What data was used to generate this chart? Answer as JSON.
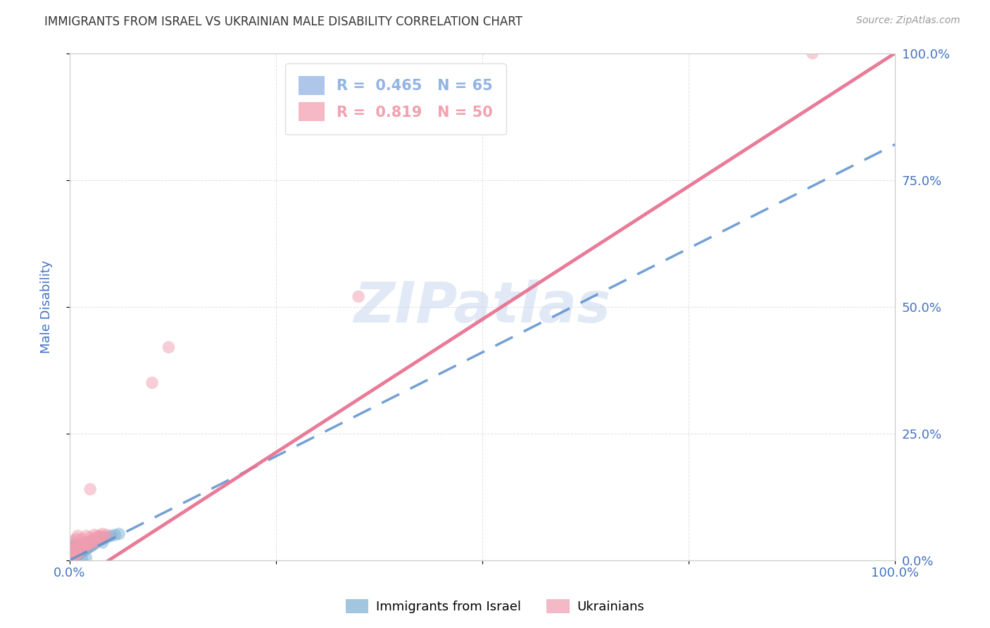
{
  "title": "IMMIGRANTS FROM ISRAEL VS UKRAINIAN MALE DISABILITY CORRELATION CHART",
  "source": "Source: ZipAtlas.com",
  "ylabel": "Male Disability",
  "xlim": [
    0,
    1.0
  ],
  "ylim": [
    0,
    1.0
  ],
  "xtick_labels": [
    "0.0%",
    "",
    "",
    "",
    "100.0%"
  ],
  "ytick_labels": [
    "",
    "",
    "",
    "",
    ""
  ],
  "right_ytick_labels": [
    "0.0%",
    "25.0%",
    "50.0%",
    "75.0%",
    "100.0%"
  ],
  "xtick_positions": [
    0.0,
    0.25,
    0.5,
    0.75,
    1.0
  ],
  "ytick_positions": [
    0.0,
    0.25,
    0.5,
    0.75,
    1.0
  ],
  "watermark": "ZIPatlas",
  "legend_entries": [
    {
      "label": "Immigrants from Israel",
      "color": "#92b4e3",
      "R": "0.465",
      "N": "65"
    },
    {
      "label": "Ukrainians",
      "color": "#f4a0b0",
      "R": "0.819",
      "N": "50"
    }
  ],
  "blue_scatter": [
    [
      0.002,
      0.005
    ],
    [
      0.003,
      0.008
    ],
    [
      0.004,
      0.006
    ],
    [
      0.005,
      0.01
    ],
    [
      0.006,
      0.008
    ],
    [
      0.007,
      0.012
    ],
    [
      0.008,
      0.01
    ],
    [
      0.009,
      0.014
    ],
    [
      0.01,
      0.012
    ],
    [
      0.011,
      0.016
    ],
    [
      0.012,
      0.014
    ],
    [
      0.013,
      0.018
    ],
    [
      0.014,
      0.016
    ],
    [
      0.015,
      0.02
    ],
    [
      0.016,
      0.018
    ],
    [
      0.017,
      0.022
    ],
    [
      0.018,
      0.02
    ],
    [
      0.019,
      0.024
    ],
    [
      0.02,
      0.022
    ],
    [
      0.021,
      0.026
    ],
    [
      0.022,
      0.024
    ],
    [
      0.023,
      0.028
    ],
    [
      0.024,
      0.026
    ],
    [
      0.025,
      0.03
    ],
    [
      0.026,
      0.028
    ],
    [
      0.027,
      0.032
    ],
    [
      0.028,
      0.03
    ],
    [
      0.029,
      0.034
    ],
    [
      0.03,
      0.032
    ],
    [
      0.032,
      0.036
    ],
    [
      0.001,
      0.003
    ],
    [
      0.002,
      0.007
    ],
    [
      0.003,
      0.004
    ],
    [
      0.004,
      0.009
    ],
    [
      0.005,
      0.006
    ],
    [
      0.006,
      0.011
    ],
    [
      0.007,
      0.008
    ],
    [
      0.008,
      0.013
    ],
    [
      0.009,
      0.01
    ],
    [
      0.01,
      0.015
    ],
    [
      0.015,
      0.025
    ],
    [
      0.02,
      0.03
    ],
    [
      0.025,
      0.035
    ],
    [
      0.03,
      0.038
    ],
    [
      0.035,
      0.04
    ],
    [
      0.04,
      0.042
    ],
    [
      0.045,
      0.045
    ],
    [
      0.05,
      0.048
    ],
    [
      0.055,
      0.05
    ],
    [
      0.06,
      0.052
    ],
    [
      0.003,
      0.022
    ],
    [
      0.004,
      0.025
    ],
    [
      0.005,
      0.022
    ],
    [
      0.012,
      0.028
    ],
    [
      0.018,
      0.032
    ],
    [
      0.022,
      0.028
    ],
    [
      0.028,
      0.033
    ],
    [
      0.033,
      0.038
    ],
    [
      0.038,
      0.04
    ],
    [
      0.04,
      0.035
    ],
    [
      0.003,
      0.032
    ],
    [
      0.005,
      0.028
    ],
    [
      0.008,
      0.005
    ],
    [
      0.02,
      0.005
    ],
    [
      0.015,
      0.003
    ]
  ],
  "pink_scatter": [
    [
      0.002,
      0.008
    ],
    [
      0.004,
      0.015
    ],
    [
      0.006,
      0.02
    ],
    [
      0.008,
      0.018
    ],
    [
      0.01,
      0.025
    ],
    [
      0.012,
      0.022
    ],
    [
      0.014,
      0.028
    ],
    [
      0.016,
      0.025
    ],
    [
      0.018,
      0.03
    ],
    [
      0.02,
      0.028
    ],
    [
      0.022,
      0.035
    ],
    [
      0.024,
      0.032
    ],
    [
      0.026,
      0.038
    ],
    [
      0.028,
      0.035
    ],
    [
      0.03,
      0.042
    ],
    [
      0.032,
      0.038
    ],
    [
      0.034,
      0.045
    ],
    [
      0.036,
      0.042
    ],
    [
      0.038,
      0.048
    ],
    [
      0.04,
      0.045
    ],
    [
      0.005,
      0.038
    ],
    [
      0.008,
      0.042
    ],
    [
      0.01,
      0.048
    ],
    [
      0.015,
      0.042
    ],
    [
      0.02,
      0.048
    ],
    [
      0.025,
      0.045
    ],
    [
      0.03,
      0.05
    ],
    [
      0.035,
      0.048
    ],
    [
      0.04,
      0.052
    ],
    [
      0.045,
      0.05
    ],
    [
      0.003,
      0.018
    ],
    [
      0.005,
      0.022
    ],
    [
      0.007,
      0.025
    ],
    [
      0.009,
      0.022
    ],
    [
      0.011,
      0.028
    ],
    [
      0.013,
      0.025
    ],
    [
      0.015,
      0.032
    ],
    [
      0.017,
      0.028
    ],
    [
      0.019,
      0.035
    ],
    [
      0.021,
      0.032
    ],
    [
      0.025,
      0.14
    ],
    [
      0.1,
      0.35
    ],
    [
      0.12,
      0.42
    ],
    [
      0.35,
      0.52
    ],
    [
      0.9,
      1.0
    ],
    [
      0.003,
      0.005
    ],
    [
      0.005,
      0.008
    ],
    [
      0.007,
      0.01
    ],
    [
      0.009,
      0.012
    ],
    [
      0.011,
      0.015
    ]
  ],
  "blue_line_slope": 0.82,
  "blue_line_intercept": 0.0,
  "pink_line_slope": 1.05,
  "pink_line_intercept": -0.05,
  "bg_color": "#ffffff",
  "grid_color": "#cccccc",
  "title_color": "#333333",
  "axis_label_color": "#4472c4",
  "blue_dot_color": "#7bafd4",
  "pink_dot_color": "#f09cb0",
  "blue_line_color": "#5b8fcc",
  "pink_line_color": "#e87090",
  "watermark_color": "#c8d8ee"
}
